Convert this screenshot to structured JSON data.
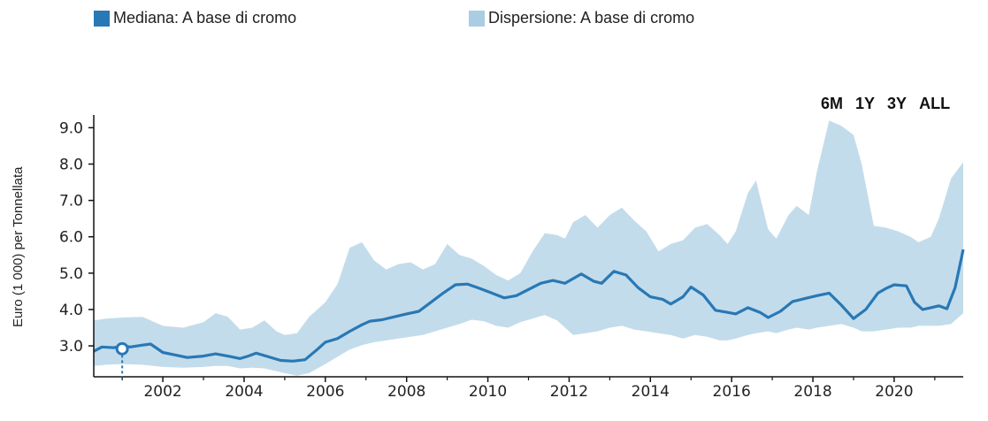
{
  "legend": {
    "median_label": "Mediana: A base di cromo",
    "spread_label": "Dispersione: A base di cromo"
  },
  "range_buttons": [
    "6M",
    "1Y",
    "3Y",
    "ALL"
  ],
  "colors": {
    "median": "#2878b5",
    "spread": "#a9cde3",
    "band_fill": "#c3dceb"
  },
  "chart_data": {
    "type": "area",
    "ylabel": "Euro (1 000) per Tonnellata",
    "xlim": [
      2000.3,
      2021.7
    ],
    "ylim": [
      2.15,
      9.35
    ],
    "y_ticks": [
      "3.0",
      "4.0",
      "5.0",
      "6.0",
      "7.0",
      "8.0",
      "9.0"
    ],
    "x_ticks": [
      "2002",
      "2004",
      "2006",
      "2008",
      "2010",
      "2012",
      "2014",
      "2016",
      "2018",
      "2020"
    ],
    "x_tick_values": [
      2002,
      2004,
      2006,
      2008,
      2010,
      2012,
      2014,
      2016,
      2018,
      2020
    ],
    "series": [
      {
        "name": "Mediana: A base di cromo",
        "points": [
          [
            2000.3,
            2.85
          ],
          [
            2000.5,
            2.97
          ],
          [
            2000.8,
            2.95
          ],
          [
            2001.0,
            3.0
          ],
          [
            2001.2,
            2.97
          ],
          [
            2001.5,
            3.02
          ],
          [
            2001.7,
            3.05
          ],
          [
            2002.0,
            2.82
          ],
          [
            2002.3,
            2.75
          ],
          [
            2002.6,
            2.68
          ],
          [
            2003.0,
            2.72
          ],
          [
            2003.3,
            2.78
          ],
          [
            2003.6,
            2.72
          ],
          [
            2003.9,
            2.65
          ],
          [
            2004.1,
            2.72
          ],
          [
            2004.3,
            2.8
          ],
          [
            2004.6,
            2.7
          ],
          [
            2004.9,
            2.6
          ],
          [
            2005.2,
            2.58
          ],
          [
            2005.5,
            2.62
          ],
          [
            2005.8,
            2.9
          ],
          [
            2006.0,
            3.1
          ],
          [
            2006.3,
            3.2
          ],
          [
            2006.6,
            3.4
          ],
          [
            2006.9,
            3.58
          ],
          [
            2007.1,
            3.68
          ],
          [
            2007.4,
            3.72
          ],
          [
            2007.7,
            3.8
          ],
          [
            2008.0,
            3.88
          ],
          [
            2008.3,
            3.95
          ],
          [
            2008.6,
            4.2
          ],
          [
            2008.9,
            4.45
          ],
          [
            2009.2,
            4.68
          ],
          [
            2009.5,
            4.7
          ],
          [
            2009.8,
            4.58
          ],
          [
            2010.1,
            4.45
          ],
          [
            2010.4,
            4.32
          ],
          [
            2010.7,
            4.38
          ],
          [
            2011.0,
            4.55
          ],
          [
            2011.3,
            4.72
          ],
          [
            2011.6,
            4.8
          ],
          [
            2011.9,
            4.72
          ],
          [
            2012.1,
            4.85
          ],
          [
            2012.3,
            4.98
          ],
          [
            2012.6,
            4.78
          ],
          [
            2012.8,
            4.72
          ],
          [
            2013.1,
            5.05
          ],
          [
            2013.4,
            4.95
          ],
          [
            2013.7,
            4.6
          ],
          [
            2014.0,
            4.35
          ],
          [
            2014.3,
            4.28
          ],
          [
            2014.5,
            4.15
          ],
          [
            2014.8,
            4.35
          ],
          [
            2015.0,
            4.62
          ],
          [
            2015.3,
            4.4
          ],
          [
            2015.6,
            3.98
          ],
          [
            2015.9,
            3.92
          ],
          [
            2016.1,
            3.88
          ],
          [
            2016.4,
            4.05
          ],
          [
            2016.7,
            3.92
          ],
          [
            2016.9,
            3.78
          ],
          [
            2017.2,
            3.95
          ],
          [
            2017.5,
            4.22
          ],
          [
            2017.8,
            4.3
          ],
          [
            2018.1,
            4.38
          ],
          [
            2018.4,
            4.45
          ],
          [
            2018.7,
            4.12
          ],
          [
            2019.0,
            3.75
          ],
          [
            2019.3,
            4.0
          ],
          [
            2019.6,
            4.45
          ],
          [
            2019.8,
            4.58
          ],
          [
            2020.0,
            4.68
          ],
          [
            2020.3,
            4.65
          ],
          [
            2020.5,
            4.2
          ],
          [
            2020.7,
            4.0
          ],
          [
            2020.9,
            4.05
          ],
          [
            2021.1,
            4.1
          ],
          [
            2021.3,
            4.02
          ],
          [
            2021.5,
            4.6
          ],
          [
            2021.7,
            5.65
          ]
        ]
      },
      {
        "name": "Dispersione: A base di cromo",
        "points": [
          [
            2000.3,
            2.45,
            3.7
          ],
          [
            2000.6,
            2.48,
            3.75
          ],
          [
            2001.0,
            2.5,
            3.78
          ],
          [
            2001.5,
            2.48,
            3.8
          ],
          [
            2002.0,
            2.42,
            3.55
          ],
          [
            2002.5,
            2.4,
            3.5
          ],
          [
            2003.0,
            2.42,
            3.65
          ],
          [
            2003.3,
            2.45,
            3.9
          ],
          [
            2003.6,
            2.45,
            3.8
          ],
          [
            2003.9,
            2.38,
            3.45
          ],
          [
            2004.2,
            2.4,
            3.5
          ],
          [
            2004.5,
            2.38,
            3.7
          ],
          [
            2004.8,
            2.3,
            3.4
          ],
          [
            2005.0,
            2.25,
            3.3
          ],
          [
            2005.3,
            2.18,
            3.35
          ],
          [
            2005.6,
            2.25,
            3.8
          ],
          [
            2006.0,
            2.5,
            4.2
          ],
          [
            2006.3,
            2.7,
            4.7
          ],
          [
            2006.6,
            2.9,
            5.7
          ],
          [
            2006.9,
            3.02,
            5.85
          ],
          [
            2007.2,
            3.1,
            5.35
          ],
          [
            2007.5,
            3.15,
            5.1
          ],
          [
            2007.8,
            3.2,
            5.25
          ],
          [
            2008.1,
            3.25,
            5.3
          ],
          [
            2008.4,
            3.3,
            5.1
          ],
          [
            2008.7,
            3.4,
            5.25
          ],
          [
            2009.0,
            3.5,
            5.8
          ],
          [
            2009.3,
            3.6,
            5.5
          ],
          [
            2009.6,
            3.72,
            5.4
          ],
          [
            2009.9,
            3.68,
            5.2
          ],
          [
            2010.2,
            3.55,
            4.95
          ],
          [
            2010.5,
            3.5,
            4.8
          ],
          [
            2010.8,
            3.65,
            5.0
          ],
          [
            2011.1,
            3.75,
            5.6
          ],
          [
            2011.4,
            3.85,
            6.1
          ],
          [
            2011.7,
            3.7,
            6.05
          ],
          [
            2011.9,
            3.5,
            5.95
          ],
          [
            2012.1,
            3.3,
            6.4
          ],
          [
            2012.4,
            3.35,
            6.6
          ],
          [
            2012.7,
            3.4,
            6.25
          ],
          [
            2013.0,
            3.5,
            6.6
          ],
          [
            2013.3,
            3.55,
            6.8
          ],
          [
            2013.6,
            3.45,
            6.45
          ],
          [
            2013.9,
            3.4,
            6.15
          ],
          [
            2014.2,
            3.35,
            5.6
          ],
          [
            2014.5,
            3.3,
            5.8
          ],
          [
            2014.8,
            3.2,
            5.9
          ],
          [
            2015.1,
            3.3,
            6.25
          ],
          [
            2015.4,
            3.25,
            6.35
          ],
          [
            2015.7,
            3.15,
            6.05
          ],
          [
            2015.9,
            3.15,
            5.8
          ],
          [
            2016.1,
            3.2,
            6.15
          ],
          [
            2016.4,
            3.3,
            7.2
          ],
          [
            2016.6,
            3.35,
            7.55
          ],
          [
            2016.9,
            3.4,
            6.2
          ],
          [
            2017.1,
            3.35,
            5.95
          ],
          [
            2017.4,
            3.45,
            6.6
          ],
          [
            2017.6,
            3.5,
            6.85
          ],
          [
            2017.9,
            3.45,
            6.6
          ],
          [
            2018.1,
            3.5,
            7.8
          ],
          [
            2018.4,
            3.55,
            9.2
          ],
          [
            2018.7,
            3.6,
            9.05
          ],
          [
            2019.0,
            3.5,
            8.8
          ],
          [
            2019.2,
            3.4,
            8.0
          ],
          [
            2019.5,
            3.4,
            6.3
          ],
          [
            2019.8,
            3.45,
            6.25
          ],
          [
            2020.1,
            3.5,
            6.15
          ],
          [
            2020.4,
            3.5,
            6.0
          ],
          [
            2020.6,
            3.55,
            5.85
          ],
          [
            2020.9,
            3.55,
            6.0
          ],
          [
            2021.1,
            3.55,
            6.5
          ],
          [
            2021.4,
            3.6,
            7.6
          ],
          [
            2021.7,
            3.9,
            8.05
          ]
        ]
      }
    ],
    "highlight_point": [
      2001.0,
      2.92
    ]
  }
}
